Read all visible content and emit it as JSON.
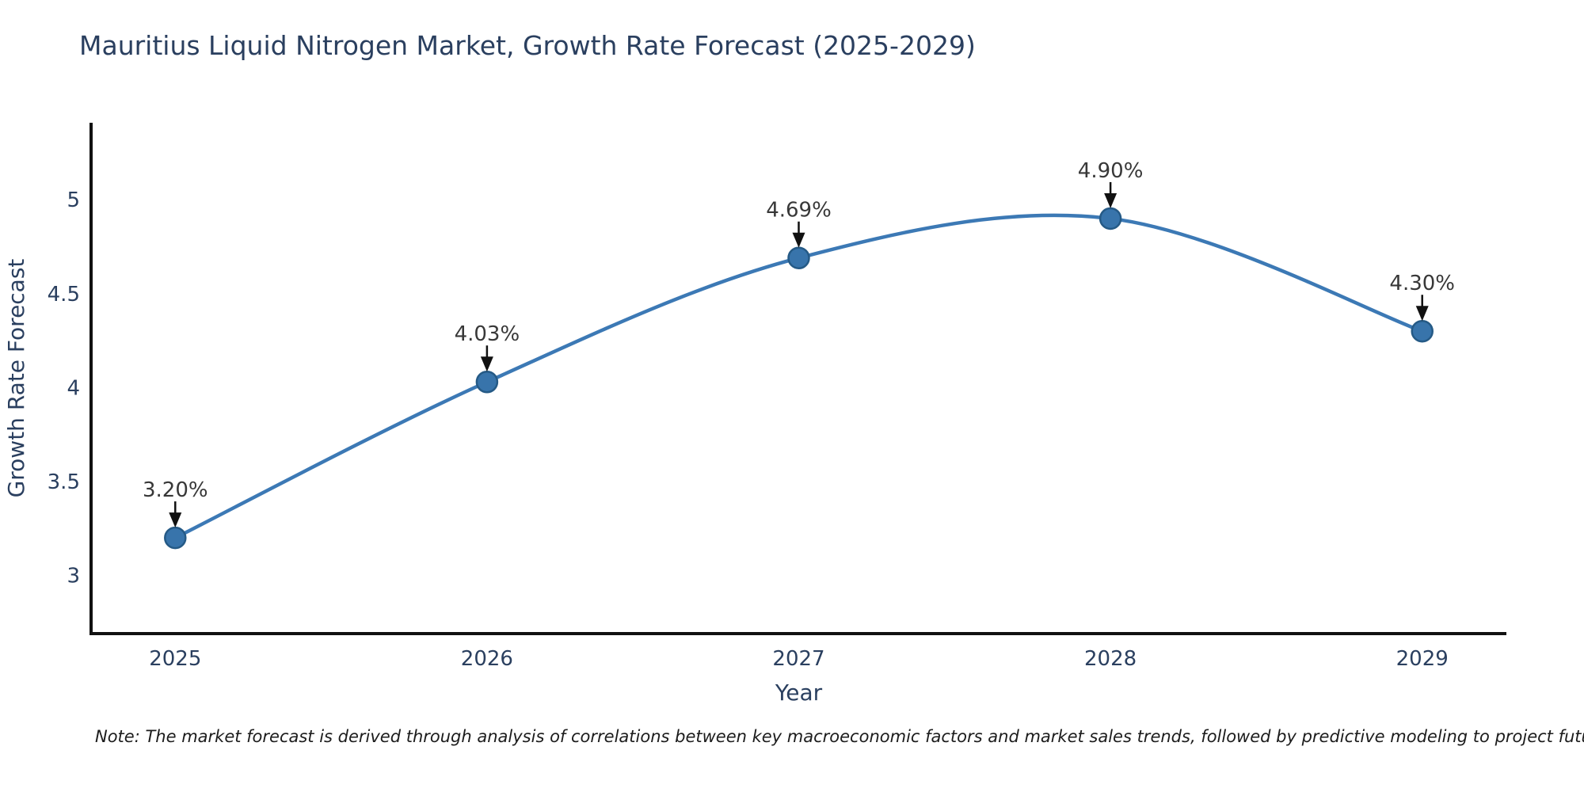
{
  "title": {
    "text": "Mauritius Liquid Nitrogen Market, Growth Rate Forecast (2025-2029)",
    "color": "#2a3f5f"
  },
  "note": {
    "text": "Note: The market forecast is derived through analysis of correlations between key macroeconomic factors and market sales trends, followed by predictive modeling to project future sales",
    "color": "#1c1c1c"
  },
  "chart_data": {
    "type": "line",
    "title": "Mauritius Liquid Nitrogen Market, Growth Rate Forecast (2025-2029)",
    "x": [
      2025,
      2026,
      2027,
      2028,
      2029
    ],
    "values": [
      3.2,
      4.03,
      4.69,
      4.9,
      4.3
    ],
    "point_labels": [
      "3.20%",
      "4.03%",
      "4.69%",
      "4.90%",
      "4.30%"
    ],
    "xlabel": "Year",
    "ylabel": "Growth Rate Forecast",
    "xticks": [
      "2025",
      "2026",
      "2027",
      "2028",
      "2029"
    ],
    "yticks": [
      "3",
      "3.5",
      "4",
      "4.5",
      "5"
    ],
    "ytick_values": [
      3,
      3.5,
      4,
      4.5,
      5
    ],
    "xlim": [
      2024.73,
      2029.27
    ],
    "ylim": [
      2.69,
      5.41
    ],
    "grid": false,
    "legend": false,
    "line_shape": "spline",
    "colors": {
      "line": "#3c79b5",
      "marker_fill": "#3874ab",
      "marker_edge": "#255a86",
      "axis": "#111111",
      "tick_text": "#2a3f5f",
      "axis_title_text": "#2a3f5f",
      "annotation_text": "#383838",
      "arrow": "#111111"
    }
  }
}
